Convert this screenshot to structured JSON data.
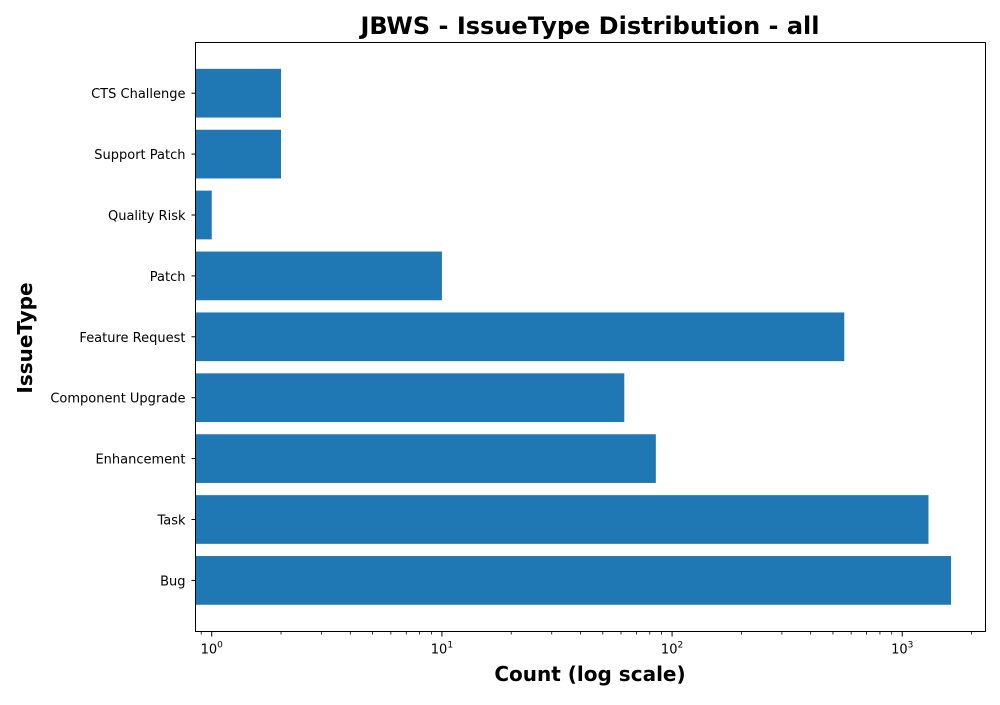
{
  "chart_data": {
    "type": "bar",
    "orientation": "horizontal",
    "title": "JBWS - IssueType Distribution - all",
    "xlabel": "Count (log scale)",
    "ylabel": "IssueType",
    "x_scale": "log",
    "xlim": [
      0.85,
      2300
    ],
    "x_ticks": [
      {
        "value": 1,
        "base": "10",
        "exp": "0"
      },
      {
        "value": 10,
        "base": "10",
        "exp": "1"
      },
      {
        "value": 100,
        "base": "10",
        "exp": "2"
      },
      {
        "value": 1000,
        "base": "10",
        "exp": "3"
      }
    ],
    "grid": false,
    "bar_color": "#1f77b4",
    "categories": [
      "Bug",
      "Task",
      "Enhancement",
      "Component Upgrade",
      "Feature Request",
      "Patch",
      "Quality Risk",
      "Support Patch",
      "CTS Challenge"
    ],
    "values": [
      1630,
      1300,
      85,
      62,
      560,
      10,
      1,
      2,
      2
    ]
  }
}
